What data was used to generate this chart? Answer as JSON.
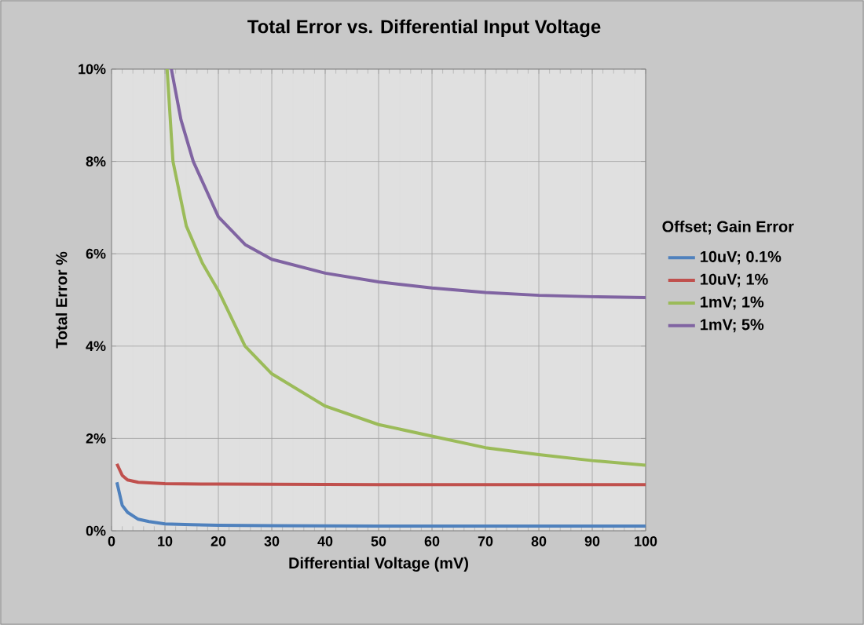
{
  "chart_data": {
    "type": "line",
    "title": "Total Error vs. Differential Input Voltage",
    "xlabel": "Differential Voltage (mV)",
    "ylabel": "Total Error %",
    "legend_title": "Offset; Gain Error",
    "legend": "right",
    "grid": true,
    "xlim": [
      0,
      100
    ],
    "xticks": [
      0,
      10,
      20,
      30,
      40,
      50,
      60,
      70,
      80,
      90,
      100
    ],
    "ylim": [
      0,
      10
    ],
    "yticks": [
      {
        "value": 0,
        "label": "0%"
      },
      {
        "value": 2,
        "label": "2%"
      },
      {
        "value": 4,
        "label": "4%"
      },
      {
        "value": 6,
        "label": "6%"
      },
      {
        "value": 8,
        "label": "8%"
      },
      {
        "value": 10,
        "label": "10%"
      }
    ],
    "series": [
      {
        "name": "10uV; 0.1%",
        "color": "#4f81bd",
        "x": [
          1,
          2,
          3,
          5,
          7,
          10,
          15,
          20,
          30,
          50,
          70,
          100
        ],
        "values": [
          1.05,
          0.55,
          0.4,
          0.25,
          0.2,
          0.15,
          0.13,
          0.12,
          0.11,
          0.1,
          0.1,
          0.1
        ]
      },
      {
        "name": "10uV; 1%",
        "color": "#c0504d",
        "x": [
          1,
          2,
          3,
          5,
          10,
          20,
          50,
          100
        ],
        "values": [
          1.45,
          1.2,
          1.1,
          1.05,
          1.02,
          1.01,
          1.0,
          1.0
        ]
      },
      {
        "name": "1mV; 1%",
        "color": "#9bbb59",
        "x": [
          10.4,
          11.5,
          14,
          17,
          20,
          25,
          30,
          40,
          50,
          60,
          70,
          80,
          90,
          100
        ],
        "values": [
          10,
          8,
          6.6,
          5.8,
          5.2,
          4.0,
          3.4,
          2.7,
          2.3,
          2.05,
          1.8,
          1.65,
          1.52,
          1.42
        ]
      },
      {
        "name": "1mV; 5%",
        "color": "#8064a2",
        "x": [
          11.2,
          13,
          15.3,
          20,
          25,
          30,
          40,
          50,
          60,
          70,
          80,
          90,
          100
        ],
        "values": [
          10,
          8.9,
          8,
          6.8,
          6.2,
          5.88,
          5.58,
          5.39,
          5.26,
          5.16,
          5.1,
          5.07,
          5.05
        ]
      }
    ]
  }
}
